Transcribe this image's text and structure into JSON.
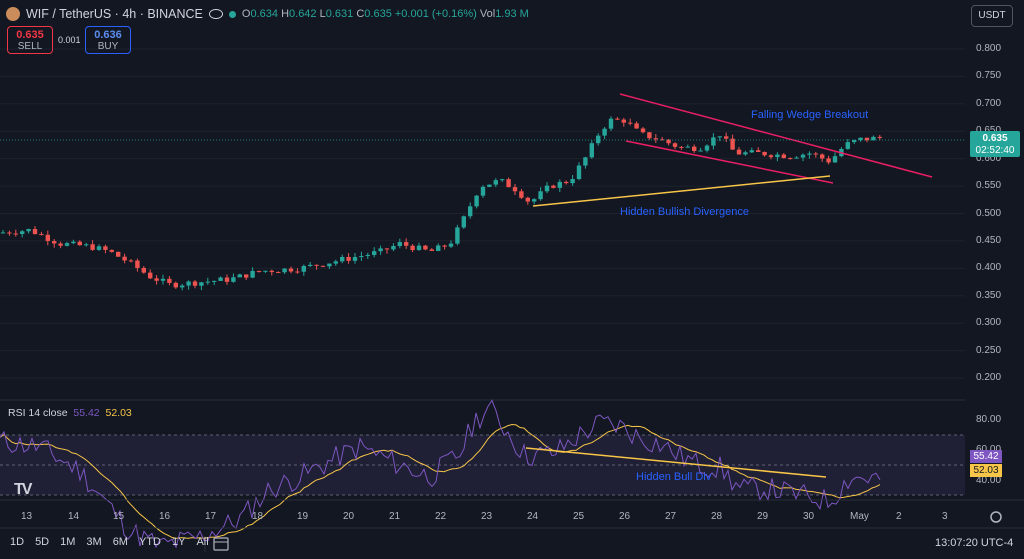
{
  "header": {
    "symbol": "WIF / TetherUS · 4h · BINANCE",
    "open_label": "O",
    "open": "0.634",
    "high_label": "H",
    "high": "0.642",
    "low_label": "L",
    "low": "0.631",
    "close_label": "C",
    "close": "0.635",
    "change": "+0.001 (+0.16%)",
    "vol_label": "Vol",
    "vol": "1.93 M"
  },
  "trade": {
    "sell_price": "0.635",
    "sell_label": "SELL",
    "spread": "0.001",
    "buy_price": "0.636",
    "buy_label": "BUY"
  },
  "currency": "USDT",
  "price_axis": [
    "0.800",
    "0.750",
    "0.700",
    "0.650",
    "0.600",
    "0.550",
    "0.500",
    "0.450",
    "0.400",
    "0.350",
    "0.300",
    "0.250",
    "0.200"
  ],
  "current_price": {
    "price": "0.635",
    "countdown": "02:52:40"
  },
  "annotations": {
    "wedge": "Falling Wedge Breakout",
    "divergence": "Hidden Bullish Divergence",
    "rsi_div": "Hidden Bull Div"
  },
  "rsi": {
    "label": "RSI 14 close",
    "value": "55.42",
    "ma": "52.03",
    "axis": [
      "80.00",
      "60.00",
      "40.00"
    ]
  },
  "time_axis": [
    "13",
    "14",
    "15",
    "16",
    "17",
    "18",
    "19",
    "20",
    "21",
    "22",
    "23",
    "24",
    "25",
    "26",
    "27",
    "28",
    "29",
    "30",
    "May",
    "2",
    "3"
  ],
  "timeframes": [
    "1D",
    "5D",
    "1M",
    "3M",
    "6M",
    "YTD",
    "1Y",
    "All"
  ],
  "clock": "13:07:20 UTC-4",
  "colors": {
    "bg": "#131722",
    "up": "#26a69a",
    "down": "#ef5350",
    "wedge": "#e91e63",
    "divergence": "#f7c548",
    "rsi": "#7e57c2",
    "rsi_ma": "#f7c548"
  },
  "chart_data": {
    "type": "candlestick",
    "price_anchors": [
      [
        0,
        0.465
      ],
      [
        30,
        0.47
      ],
      [
        60,
        0.445
      ],
      [
        90,
        0.44
      ],
      [
        110,
        0.43
      ],
      [
        130,
        0.41
      ],
      [
        150,
        0.385
      ],
      [
        170,
        0.37
      ],
      [
        200,
        0.375
      ],
      [
        230,
        0.38
      ],
      [
        260,
        0.395
      ],
      [
        300,
        0.4
      ],
      [
        340,
        0.415
      ],
      [
        380,
        0.43
      ],
      [
        400,
        0.445
      ],
      [
        430,
        0.43
      ],
      [
        450,
        0.445
      ],
      [
        465,
        0.495
      ],
      [
        480,
        0.55
      ],
      [
        500,
        0.56
      ],
      [
        515,
        0.545
      ],
      [
        530,
        0.52
      ],
      [
        550,
        0.55
      ],
      [
        570,
        0.56
      ],
      [
        585,
        0.6
      ],
      [
        600,
        0.65
      ],
      [
        610,
        0.67
      ],
      [
        625,
        0.67
      ],
      [
        640,
        0.645
      ],
      [
        660,
        0.635
      ],
      [
        680,
        0.62
      ],
      [
        700,
        0.62
      ],
      [
        720,
        0.645
      ],
      [
        735,
        0.61
      ],
      [
        760,
        0.61
      ],
      [
        790,
        0.605
      ],
      [
        810,
        0.61
      ],
      [
        830,
        0.595
      ],
      [
        845,
        0.625
      ],
      [
        860,
        0.635
      ],
      [
        880,
        0.638
      ]
    ],
    "rsi_anchors": [
      [
        0,
        68
      ],
      [
        40,
        66
      ],
      [
        80,
        58
      ],
      [
        110,
        46
      ],
      [
        130,
        38
      ],
      [
        160,
        33
      ],
      [
        200,
        36
      ],
      [
        240,
        42
      ],
      [
        270,
        52
      ],
      [
        300,
        56
      ],
      [
        340,
        63
      ],
      [
        360,
        66
      ],
      [
        400,
        60
      ],
      [
        430,
        56
      ],
      [
        460,
        64
      ],
      [
        475,
        75
      ],
      [
        490,
        79
      ],
      [
        510,
        70
      ],
      [
        525,
        63
      ],
      [
        555,
        64
      ],
      [
        580,
        70
      ],
      [
        600,
        74
      ],
      [
        620,
        73
      ],
      [
        640,
        69
      ],
      [
        660,
        67
      ],
      [
        680,
        63
      ],
      [
        700,
        60
      ],
      [
        720,
        59
      ],
      [
        740,
        52
      ],
      [
        770,
        52
      ],
      [
        800,
        50
      ],
      [
        830,
        48
      ],
      [
        850,
        56
      ],
      [
        880,
        55.42
      ]
    ]
  }
}
